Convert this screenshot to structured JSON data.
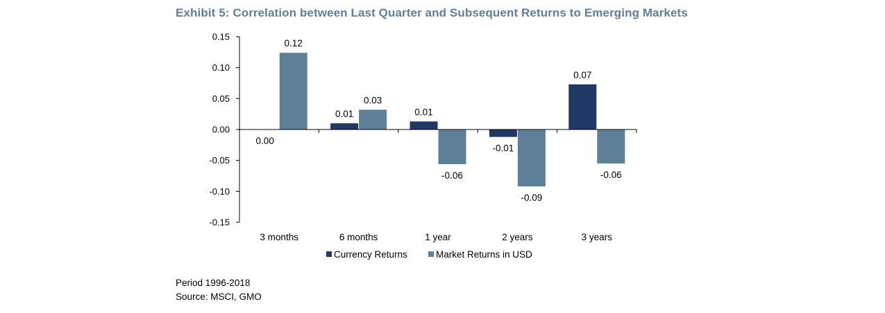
{
  "title": "Exhibit 5: Correlation between Last Quarter and Subsequent Returns to Emerging Markets",
  "footnotes": {
    "period": "Period 1996-2018",
    "source": "Source: MSCI, GMO"
  },
  "colors": {
    "currency": "#1f3864",
    "market": "#5e7f98",
    "title": "#5e7fa0"
  },
  "chart_data": {
    "type": "bar",
    "title": "Exhibit 5: Correlation between Last Quarter and Subsequent Returns to Emerging Markets",
    "categories": [
      "3 months",
      "6 months",
      "1 year",
      "2 years",
      "3 years"
    ],
    "series": [
      {
        "name": "Currency Returns",
        "values": [
          0.0,
          0.01,
          0.013,
          -0.012,
          0.073
        ],
        "labels": [
          "0.00",
          "0.01",
          "0.01",
          "-0.01",
          "0.07"
        ],
        "color": "#1f3864"
      },
      {
        "name": "Market Returns in USD",
        "values": [
          0.124,
          0.032,
          -0.056,
          -0.092,
          -0.055
        ],
        "labels": [
          "0.12",
          "0.03",
          "-0.06",
          "-0.09",
          "-0.06"
        ],
        "color": "#5e7f98"
      }
    ],
    "yticks": [
      "0.15",
      "0.10",
      "0.05",
      "0.00",
      "-0.05",
      "-0.10",
      "-0.15"
    ],
    "ylim": [
      -0.15,
      0.15
    ],
    "grid": false,
    "legend": "bottom"
  }
}
